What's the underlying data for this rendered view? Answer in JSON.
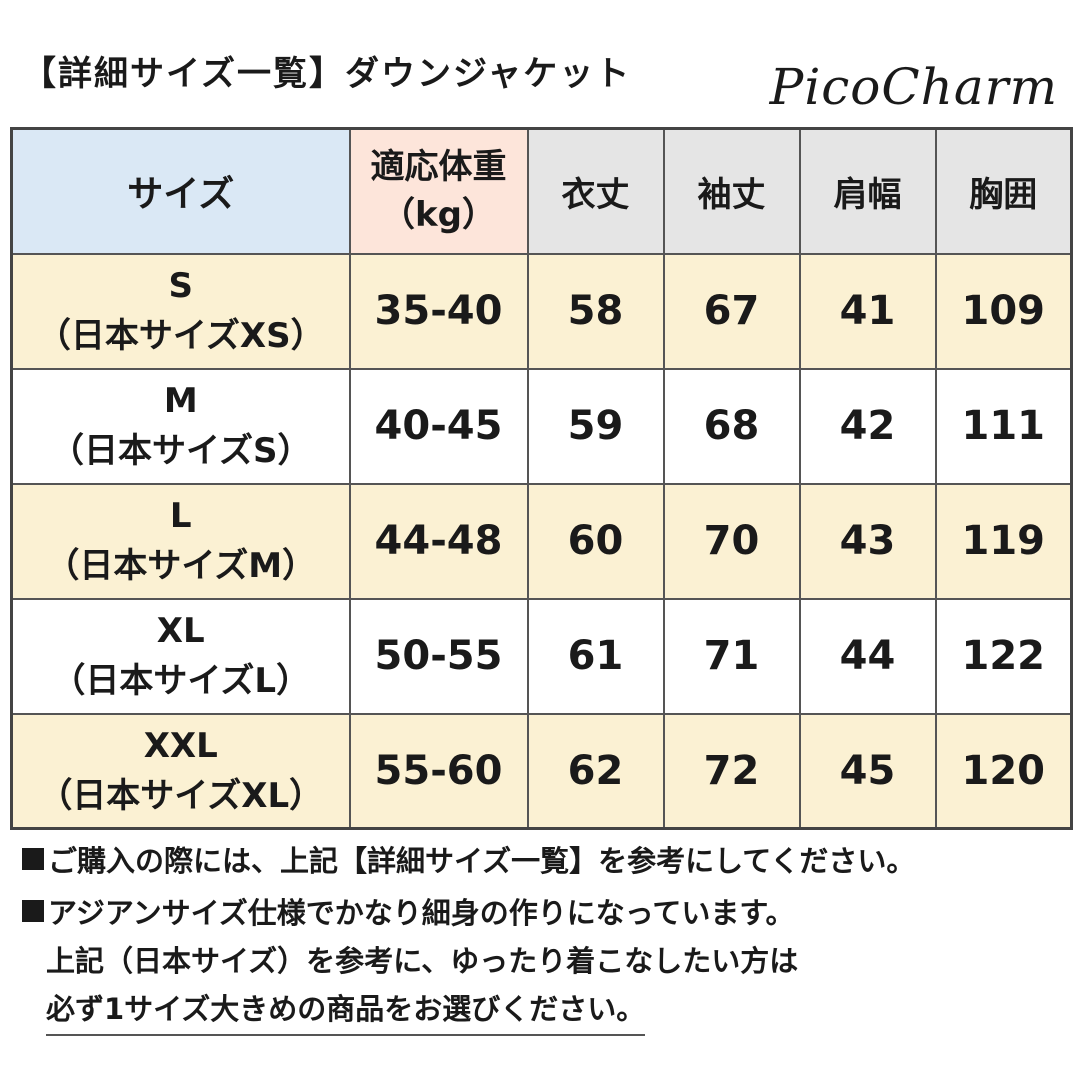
{
  "title": "【詳細サイズ一覧】ダウンジャケット",
  "brand": "PicoCharm",
  "table": {
    "headers": {
      "size": "サイズ",
      "weight_line1": "適応体重",
      "weight_line2": "（kg）",
      "length": "衣丈",
      "sleeve": "袖丈",
      "shoulder": "肩幅",
      "chest": "胸囲"
    },
    "rows": [
      {
        "size": "S",
        "jp": "（日本サイズXS）",
        "weight": "35-40",
        "length": "58",
        "sleeve": "67",
        "shoulder": "41",
        "chest": "109"
      },
      {
        "size": "M",
        "jp": "（日本サイズS）",
        "weight": "40-45",
        "length": "59",
        "sleeve": "68",
        "shoulder": "42",
        "chest": "111"
      },
      {
        "size": "L",
        "jp": "（日本サイズM）",
        "weight": "44-48",
        "length": "60",
        "sleeve": "70",
        "shoulder": "43",
        "chest": "119"
      },
      {
        "size": "XL",
        "jp": "（日本サイズL）",
        "weight": "50-55",
        "length": "61",
        "sleeve": "71",
        "shoulder": "44",
        "chest": "122"
      },
      {
        "size": "XXL",
        "jp": "（日本サイズXL）",
        "weight": "55-60",
        "length": "62",
        "sleeve": "72",
        "shoulder": "45",
        "chest": "120"
      }
    ]
  },
  "notes": {
    "line1": "ご購入の際には、上記【詳細サイズ一覧】を参考にしてください。",
    "line2": "アジアンサイズ仕様でかなり細身の作りになっています。",
    "line3": "上記（日本サイズ）を参考に、ゆったり着こなしたい方は",
    "line4": "必ず1サイズ大きめの商品をお選びください。"
  },
  "colors": {
    "header_size_bg": "#dae8f5",
    "header_weight_bg": "#fde5da",
    "header_other_bg": "#e5e5e5",
    "row_highlight_bg": "#fbf1d3"
  }
}
